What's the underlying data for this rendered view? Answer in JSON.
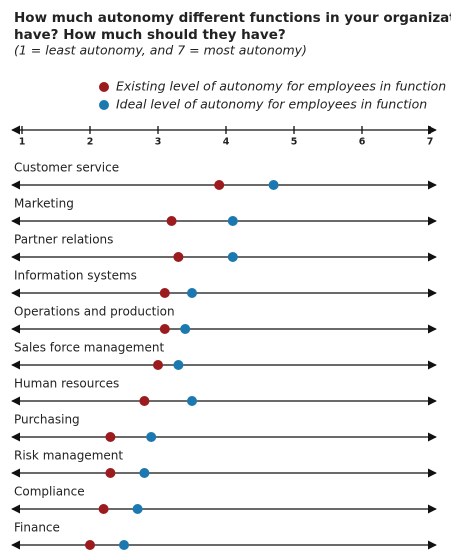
{
  "chart_data": {
    "type": "dot",
    "title": [
      "How much autonomy different functions in your organization",
      "have? How much should they have?"
    ],
    "subtitle": "(1 = least autonomy, and 7 = most autonomy)",
    "categories": [
      "Customer service",
      "Marketing",
      "Partner relations",
      "Information systems",
      "Operations and production",
      "Sales force management",
      "Human resources",
      "Purchasing",
      "Risk management",
      "Compliance",
      "Finance"
    ],
    "series": [
      {
        "name": "Existing level of autonomy for employees in function",
        "color": "#9b1b1e",
        "values": [
          3.9,
          3.2,
          3.3,
          3.1,
          3.1,
          3.0,
          2.8,
          2.3,
          2.3,
          2.2,
          2.0
        ]
      },
      {
        "name": "Ideal level of autonomy for employees in function",
        "color": "#1b78b0",
        "values": [
          4.7,
          4.1,
          4.1,
          3.5,
          3.4,
          3.3,
          3.5,
          2.9,
          2.8,
          2.7,
          2.5
        ]
      }
    ],
    "xlim": [
      1,
      7
    ],
    "xticks": [
      1,
      2,
      3,
      4,
      5,
      6,
      7
    ]
  }
}
